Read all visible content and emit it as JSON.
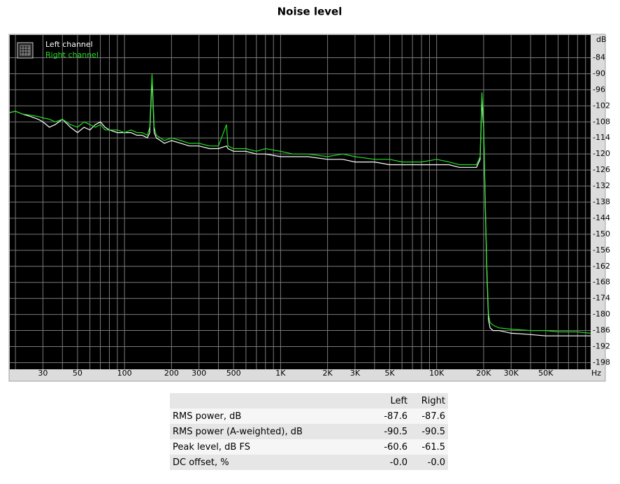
{
  "chart_data": {
    "type": "line",
    "title": "Noise level",
    "x_label": "Hz",
    "y_label": "dB",
    "xscale": "log",
    "grid": true,
    "legend": "upper left",
    "xlim": [
      18.4,
      97000
    ],
    "ylim": [
      -200.5,
      -75.5
    ],
    "xticks": [
      30,
      50,
      100,
      200,
      300,
      500,
      {
        "value": 1000,
        "label": "1K"
      },
      {
        "value": 2000,
        "label": "2K"
      },
      {
        "value": 3000,
        "label": "3K"
      },
      {
        "value": 5000,
        "label": "5K"
      },
      {
        "value": 10000,
        "label": "10K"
      },
      {
        "value": 20000,
        "label": "20K"
      },
      {
        "value": 30000,
        "label": "30K"
      },
      {
        "value": 50000,
        "label": "50K"
      }
    ],
    "xminor": [
      20,
      40,
      60,
      70,
      80,
      90,
      400,
      600,
      700,
      800,
      900,
      4000,
      6000,
      7000,
      8000,
      9000,
      40000,
      60000,
      70000,
      80000,
      90000
    ],
    "yticks": [
      -84,
      -90,
      -96,
      -102,
      -108,
      -114,
      -120,
      -126,
      -132,
      -138,
      -144,
      -150,
      -156,
      -162,
      -168,
      -174,
      -180,
      -186,
      -192,
      -198
    ],
    "x": [
      18.4,
      20,
      22,
      25,
      28,
      30,
      33,
      36,
      40,
      45,
      50,
      55,
      60,
      65,
      70,
      75,
      80,
      90,
      100,
      110,
      120,
      130,
      140,
      145,
      150,
      155,
      160,
      170,
      180,
      200,
      230,
      260,
      300,
      350,
      400,
      450,
      460,
      500,
      600,
      700,
      800,
      1000,
      1200,
      1500,
      2000,
      2500,
      3000,
      4000,
      5000,
      6000,
      7000,
      8000,
      10000,
      12000,
      14000,
      16000,
      18000,
      19000,
      19500,
      20000,
      20500,
      21000,
      21500,
      22000,
      23000,
      25000,
      30000,
      40000,
      50000,
      60000,
      70000,
      80000,
      97000
    ],
    "series": [
      {
        "name": "Left channel",
        "color": "#ffffff",
        "values": [
          -104.5,
          -104,
          -105,
          -106,
          -107,
          -108,
          -110,
          -109,
          -107,
          -110,
          -112,
          -110,
          -111,
          -109,
          -108,
          -110,
          -111,
          -112,
          -112,
          -112,
          -113,
          -113,
          -114,
          -112,
          -92,
          -112,
          -114,
          -115,
          -116,
          -115,
          -116,
          -117,
          -117,
          -118,
          -118,
          -117,
          -118,
          -119,
          -119,
          -120,
          -120,
          -121,
          -121,
          -121,
          -122,
          -122,
          -123,
          -123,
          -124,
          -124,
          -124,
          -124,
          -124,
          -124,
          -125,
          -125,
          -125,
          -122,
          -100,
          -110,
          -140,
          -165,
          -182,
          -185,
          -186,
          -186,
          -187,
          -187.5,
          -188,
          -188,
          -188,
          -188,
          -188
        ]
      },
      {
        "name": "Right channel",
        "color": "#22dd22",
        "values": [
          -104.5,
          -104,
          -105,
          -105.5,
          -106,
          -106.5,
          -107,
          -108,
          -107,
          -109,
          -110,
          -108,
          -109,
          -110,
          -109,
          -111,
          -111,
          -111,
          -112,
          -111,
          -112,
          -112,
          -113,
          -110,
          -90,
          -110,
          -113,
          -114,
          -115,
          -114,
          -115,
          -116,
          -116,
          -117,
          -117,
          -109,
          -117,
          -118,
          -118,
          -119,
          -118,
          -119,
          -120,
          -120,
          -121,
          -120,
          -121,
          -122,
          -122,
          -123,
          -123,
          -123,
          -122,
          -123,
          -124,
          -124,
          -124,
          -121,
          -97,
          -108,
          -138,
          -163,
          -180,
          -183,
          -184,
          -185,
          -185.5,
          -186,
          -186,
          -186.5,
          -186.5,
          -186.5,
          -187
        ]
      }
    ]
  },
  "table": {
    "header": [
      "Left",
      "Right"
    ],
    "rows": [
      [
        "RMS power, dB",
        "-87.6",
        "-87.6"
      ],
      [
        "RMS power (A-weighted), dB",
        "-90.5",
        "-90.5"
      ],
      [
        "Peak level, dB FS",
        "-60.6",
        "-61.5"
      ],
      [
        "DC offset, %",
        "-0.0",
        "-0.0"
      ]
    ]
  }
}
